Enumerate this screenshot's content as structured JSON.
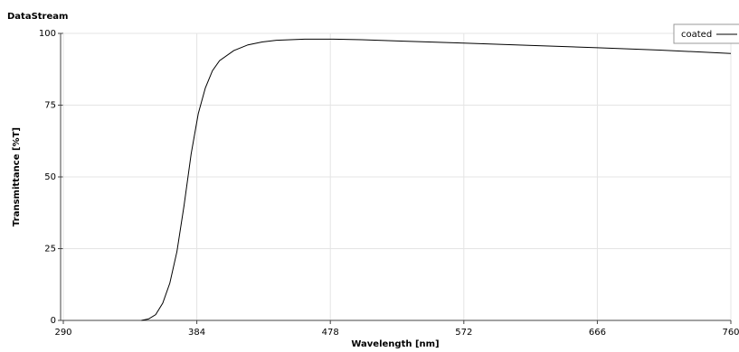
{
  "chart_data": {
    "type": "line",
    "title": "DataStream",
    "xlabel": "Wavelength [nm]",
    "ylabel": "Transmittance [%T]",
    "x": [
      345,
      350,
      355,
      360,
      365,
      370,
      375,
      380,
      385,
      390,
      395,
      400,
      410,
      420,
      430,
      440,
      460,
      480,
      500,
      530,
      572,
      620,
      666,
      710,
      760
    ],
    "series": [
      {
        "name": "coated",
        "color": "#000000",
        "values": [
          0,
          0.5,
          2,
          6,
          13,
          24,
          40,
          58,
          72,
          81,
          87,
          90.5,
          94,
          96,
          97,
          97.6,
          98,
          98,
          97.8,
          97.3,
          96.6,
          95.8,
          95,
          94.2,
          93
        ]
      }
    ],
    "xlim": [
      290,
      760
    ],
    "ylim": [
      0,
      100
    ],
    "xticks": [
      290,
      384,
      478,
      572,
      666,
      760
    ],
    "yticks": [
      0,
      25,
      50,
      75,
      100
    ],
    "grid": true,
    "legend": "upper right"
  }
}
